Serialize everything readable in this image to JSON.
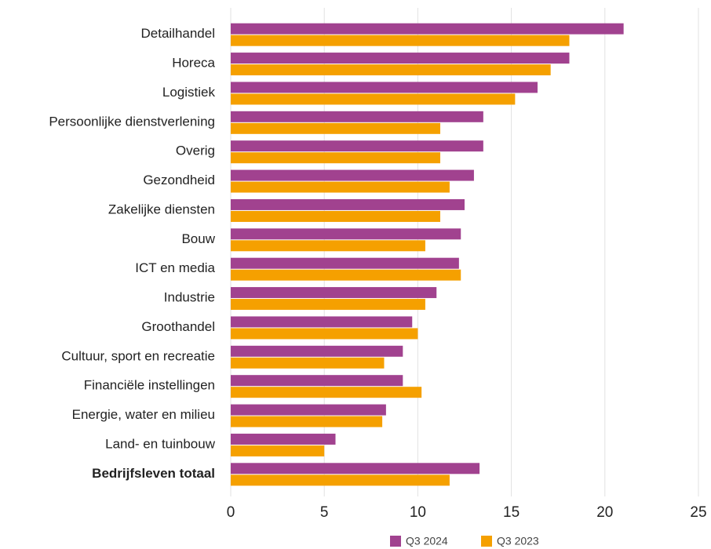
{
  "chart_data": {
    "type": "barh",
    "categories": [
      "Detailhandel",
      "Horeca",
      "Logistiek",
      "Persoonlijke dienstverlening",
      "Overig",
      "Gezondheid",
      "Zakelijke diensten",
      "Bouw",
      "ICT en media",
      "Industrie",
      "Groothandel",
      "Cultuur, sport en recreatie",
      "Financiële instellingen",
      "Energie, water en milieu",
      "Land- en tuinbouw",
      "Bedrijfsleven totaal"
    ],
    "series": [
      {
        "name": "Q3 2024",
        "color": "#a1428f",
        "values": [
          21.0,
          18.1,
          16.4,
          13.5,
          13.5,
          13.0,
          12.5,
          12.3,
          12.2,
          11.0,
          9.7,
          9.2,
          9.2,
          8.3,
          5.6,
          13.3
        ]
      },
      {
        "name": "Q3 2023",
        "color": "#f5a000",
        "values": [
          18.1,
          17.1,
          15.2,
          11.2,
          11.2,
          11.7,
          11.2,
          10.4,
          12.3,
          10.4,
          10.0,
          8.2,
          10.2,
          8.1,
          5.0,
          11.7
        ]
      }
    ],
    "xlim": [
      0,
      25
    ],
    "xticks": [
      0,
      5,
      10,
      15,
      20,
      25
    ],
    "grid": true,
    "legend": "bottom"
  }
}
